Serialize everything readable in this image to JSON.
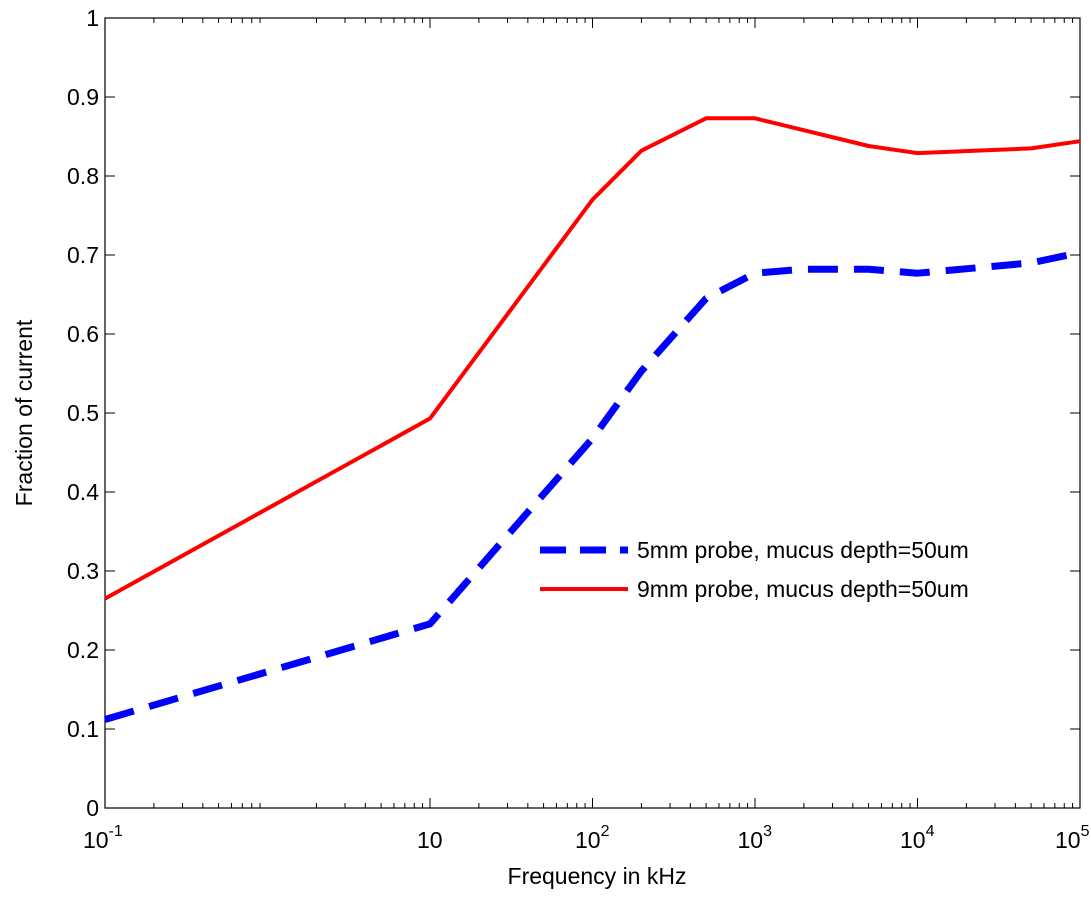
{
  "chart_data": {
    "type": "line",
    "xscale": "log",
    "xlim": [
      0.1,
      100000
    ],
    "ylim": [
      0,
      1
    ],
    "xlabel": "Frequency in kHz",
    "ylabel": "Fraction of current",
    "x_tick_labels": [
      {
        "value": 0.1,
        "base": "10",
        "exp": "-1"
      },
      {
        "value": 10,
        "base": "10",
        "exp": ""
      },
      {
        "value": 100,
        "base": "10",
        "exp": "2"
      },
      {
        "value": 1000,
        "base": "10",
        "exp": "3"
      },
      {
        "value": 10000,
        "base": "10",
        "exp": "4"
      },
      {
        "value": 100000,
        "base": "10",
        "exp": "5"
      }
    ],
    "y_ticks": [
      0,
      0.1,
      0.2,
      0.3,
      0.4,
      0.5,
      0.6,
      0.7,
      0.8,
      0.9,
      1
    ],
    "y_tick_labels": [
      "0",
      "0.1",
      "0.2",
      "0.3",
      "0.4",
      "0.5",
      "0.6",
      "0.7",
      "0.8",
      "0.9",
      "1"
    ],
    "legend_position": "center-right",
    "series": [
      {
        "name": "5mm probe, mucus depth=50um",
        "color": "#0000ff",
        "style": "dashed",
        "x": [
          0.1,
          10,
          100,
          200,
          500,
          1000,
          2000,
          5000,
          10000,
          50000,
          100000
        ],
        "y": [
          0.112,
          0.233,
          0.468,
          0.553,
          0.645,
          0.677,
          0.682,
          0.682,
          0.677,
          0.69,
          0.703
        ]
      },
      {
        "name": "9mm probe, mucus depth=50um",
        "color": "#ff0000",
        "style": "solid",
        "x": [
          0.1,
          10,
          100,
          200,
          500,
          1000,
          5000,
          10000,
          50000,
          100000
        ],
        "y": [
          0.265,
          0.493,
          0.77,
          0.832,
          0.873,
          0.873,
          0.838,
          0.829,
          0.835,
          0.844
        ]
      }
    ]
  }
}
